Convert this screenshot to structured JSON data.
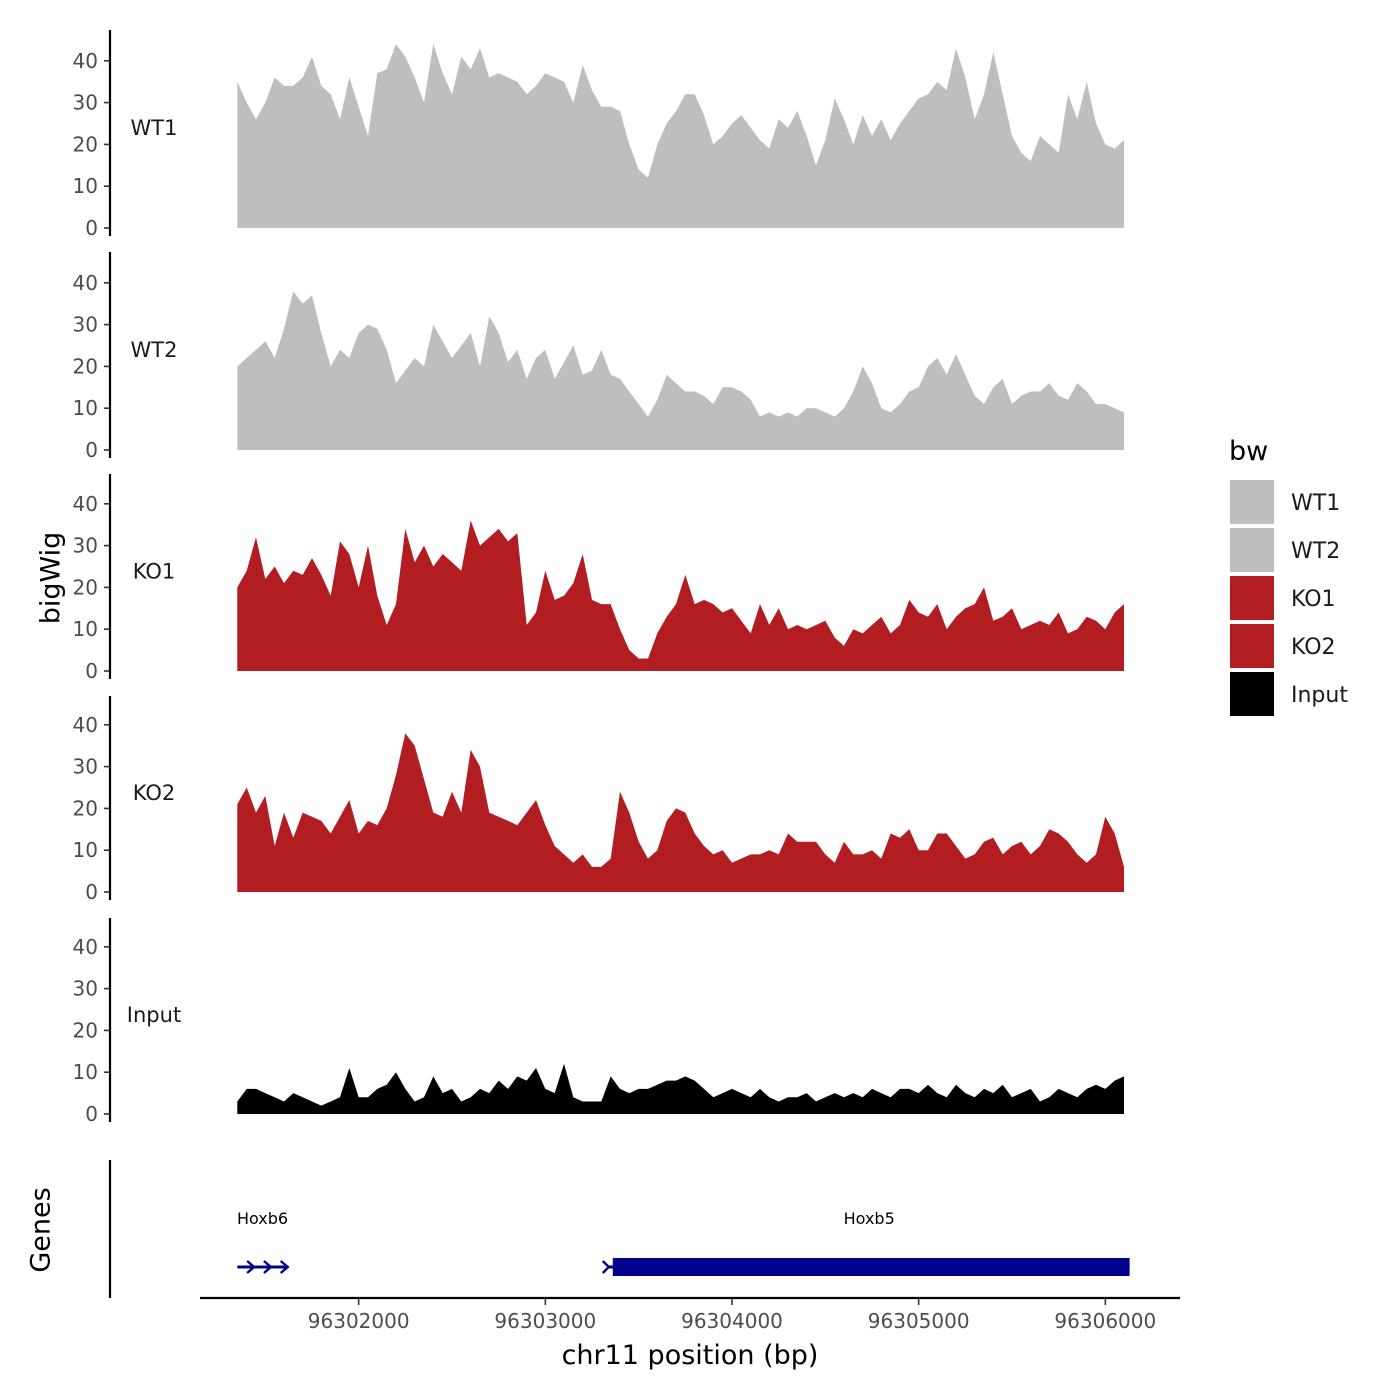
{
  "chart_data": {
    "type": "area",
    "y_axis_title": "bigWig",
    "x_axis_title": "chr11 position (bp)",
    "genes_axis_title": "Genes",
    "legend_title": "bw",
    "y_ticks": [
      "0",
      "10",
      "20",
      "30",
      "40"
    ],
    "ylim": [
      0,
      46
    ],
    "xlim": [
      96301150,
      96306400
    ],
    "x_ticks": [
      {
        "value": 96302000,
        "label": "96302000"
      },
      {
        "value": 96303000,
        "label": "96303000"
      },
      {
        "value": 96304000,
        "label": "96304000"
      },
      {
        "value": 96305000,
        "label": "96305000"
      },
      {
        "value": 96306000,
        "label": "96306000"
      }
    ],
    "series": [
      {
        "name": "WT1",
        "label": "WT1",
        "color": "#bebebe",
        "x": [
          96301350,
          96301400,
          96301450,
          96301500,
          96301550,
          96301600,
          96301650,
          96301700,
          96301750,
          96301800,
          96301850,
          96301900,
          96301950,
          96302000,
          96302050,
          96302100,
          96302150,
          96302200,
          96302250,
          96302300,
          96302350,
          96302400,
          96302450,
          96302500,
          96302550,
          96302600,
          96302650,
          96302700,
          96302750,
          96302800,
          96302850,
          96302900,
          96302950,
          96303000,
          96303050,
          96303100,
          96303150,
          96303200,
          96303250,
          96303300,
          96303350,
          96303400,
          96303450,
          96303500,
          96303550,
          96303600,
          96303650,
          96303700,
          96303750,
          96303800,
          96303850,
          96303900,
          96303950,
          96304000,
          96304050,
          96304100,
          96304150,
          96304200,
          96304250,
          96304300,
          96304350,
          96304400,
          96304450,
          96304500,
          96304550,
          96304600,
          96304650,
          96304700,
          96304750,
          96304800,
          96304850,
          96304900,
          96304950,
          96305000,
          96305050,
          96305100,
          96305150,
          96305200,
          96305250,
          96305300,
          96305350,
          96305400,
          96305450,
          96305500,
          96305550,
          96305600,
          96305650,
          96305700,
          96305750,
          96305800,
          96305850,
          96305900,
          96305950,
          96306000,
          96306050,
          96306100
        ],
        "values": [
          35,
          30,
          26,
          30,
          36,
          34,
          34,
          36,
          41,
          34,
          32,
          26,
          36,
          29,
          22,
          37,
          38,
          44,
          41,
          36,
          30,
          44,
          37,
          32,
          41,
          38,
          43,
          36,
          37,
          36,
          35,
          32,
          34,
          37,
          36,
          35,
          30,
          39,
          33,
          29,
          29,
          28,
          20,
          14,
          12,
          20,
          25,
          28,
          32,
          32,
          27,
          20,
          22,
          25,
          27,
          24,
          21,
          19,
          26,
          24,
          28,
          22,
          15,
          21,
          31,
          26,
          20,
          27,
          22,
          26,
          21,
          25,
          28,
          31,
          32,
          35,
          33,
          43,
          36,
          26,
          32,
          42,
          32,
          22,
          18,
          16,
          22,
          20,
          18,
          32,
          26,
          35,
          25,
          20,
          19,
          21
        ]
      },
      {
        "name": "WT2",
        "label": "WT2",
        "color": "#bebebe",
        "x": [
          96301350,
          96301400,
          96301450,
          96301500,
          96301550,
          96301600,
          96301650,
          96301700,
          96301750,
          96301800,
          96301850,
          96301900,
          96301950,
          96302000,
          96302050,
          96302100,
          96302150,
          96302200,
          96302250,
          96302300,
          96302350,
          96302400,
          96302450,
          96302500,
          96302550,
          96302600,
          96302650,
          96302700,
          96302750,
          96302800,
          96302850,
          96302900,
          96302950,
          96303000,
          96303050,
          96303100,
          96303150,
          96303200,
          96303250,
          96303300,
          96303350,
          96303400,
          96303450,
          96303500,
          96303550,
          96303600,
          96303650,
          96303700,
          96303750,
          96303800,
          96303850,
          96303900,
          96303950,
          96304000,
          96304050,
          96304100,
          96304150,
          96304200,
          96304250,
          96304300,
          96304350,
          96304400,
          96304450,
          96304500,
          96304550,
          96304600,
          96304650,
          96304700,
          96304750,
          96304800,
          96304850,
          96304900,
          96304950,
          96305000,
          96305050,
          96305100,
          96305150,
          96305200,
          96305250,
          96305300,
          96305350,
          96305400,
          96305450,
          96305500,
          96305550,
          96305600,
          96305650,
          96305700,
          96305750,
          96305800,
          96305850,
          96305900,
          96305950,
          96306000,
          96306050,
          96306100
        ],
        "values": [
          20,
          22,
          24,
          26,
          22,
          29,
          38,
          35,
          37,
          28,
          20,
          24,
          22,
          28,
          30,
          29,
          24,
          16,
          19,
          22,
          20,
          30,
          26,
          22,
          25,
          28,
          20,
          32,
          28,
          21,
          24,
          17,
          22,
          24,
          17,
          21,
          25,
          18,
          19,
          24,
          18,
          17,
          14,
          11,
          8,
          12,
          18,
          16,
          14,
          14,
          13,
          11,
          15,
          15,
          14,
          12,
          8,
          9,
          8,
          9,
          8,
          10,
          10,
          9,
          8,
          10,
          14,
          20,
          16,
          10,
          9,
          11,
          14,
          15,
          20,
          22,
          18,
          23,
          18,
          13,
          11,
          15,
          17,
          11,
          13,
          14,
          14,
          16,
          13,
          12,
          16,
          14,
          11,
          11,
          10,
          9
        ]
      },
      {
        "name": "KO1",
        "label": "KO1",
        "color": "#b21d21",
        "x": [
          96301350,
          96301400,
          96301450,
          96301500,
          96301550,
          96301600,
          96301650,
          96301700,
          96301750,
          96301800,
          96301850,
          96301900,
          96301950,
          96302000,
          96302050,
          96302100,
          96302150,
          96302200,
          96302250,
          96302300,
          96302350,
          96302400,
          96302450,
          96302500,
          96302550,
          96302600,
          96302650,
          96302700,
          96302750,
          96302800,
          96302850,
          96302900,
          96302950,
          96303000,
          96303050,
          96303100,
          96303150,
          96303200,
          96303250,
          96303300,
          96303350,
          96303400,
          96303450,
          96303500,
          96303550,
          96303600,
          96303650,
          96303700,
          96303750,
          96303800,
          96303850,
          96303900,
          96303950,
          96304000,
          96304050,
          96304100,
          96304150,
          96304200,
          96304250,
          96304300,
          96304350,
          96304400,
          96304450,
          96304500,
          96304550,
          96304600,
          96304650,
          96304700,
          96304750,
          96304800,
          96304850,
          96304900,
          96304950,
          96305000,
          96305050,
          96305100,
          96305150,
          96305200,
          96305250,
          96305300,
          96305350,
          96305400,
          96305450,
          96305500,
          96305550,
          96305600,
          96305650,
          96305700,
          96305750,
          96305800,
          96305850,
          96305900,
          96305950,
          96306000,
          96306050,
          96306100
        ],
        "values": [
          20,
          24,
          32,
          22,
          25,
          21,
          24,
          23,
          27,
          23,
          18,
          31,
          28,
          20,
          30,
          18,
          11,
          16,
          34,
          26,
          30,
          25,
          28,
          26,
          24,
          36,
          30,
          32,
          34,
          31,
          33,
          11,
          14,
          24,
          17,
          18,
          21,
          28,
          17,
          16,
          16,
          10,
          5,
          3,
          3,
          9,
          13,
          16,
          23,
          16,
          17,
          16,
          14,
          15,
          12,
          9,
          16,
          11,
          15,
          10,
          11,
          10,
          11,
          12,
          8,
          6,
          10,
          9,
          11,
          13,
          9,
          11,
          17,
          14,
          13,
          16,
          10,
          13,
          15,
          16,
          20,
          12,
          13,
          15,
          10,
          11,
          12,
          11,
          14,
          9,
          10,
          13,
          12,
          10,
          14,
          16
        ]
      },
      {
        "name": "KO2",
        "label": "KO2",
        "color": "#b21d21",
        "x": [
          96301350,
          96301400,
          96301450,
          96301500,
          96301550,
          96301600,
          96301650,
          96301700,
          96301750,
          96301800,
          96301850,
          96301900,
          96301950,
          96302000,
          96302050,
          96302100,
          96302150,
          96302200,
          96302250,
          96302300,
          96302350,
          96302400,
          96302450,
          96302500,
          96302550,
          96302600,
          96302650,
          96302700,
          96302750,
          96302800,
          96302850,
          96302900,
          96302950,
          96303000,
          96303050,
          96303100,
          96303150,
          96303200,
          96303250,
          96303300,
          96303350,
          96303400,
          96303450,
          96303500,
          96303550,
          96303600,
          96303650,
          96303700,
          96303750,
          96303800,
          96303850,
          96303900,
          96303950,
          96304000,
          96304050,
          96304100,
          96304150,
          96304200,
          96304250,
          96304300,
          96304350,
          96304400,
          96304450,
          96304500,
          96304550,
          96304600,
          96304650,
          96304700,
          96304750,
          96304800,
          96304850,
          96304900,
          96304950,
          96305000,
          96305050,
          96305100,
          96305150,
          96305200,
          96305250,
          96305300,
          96305350,
          96305400,
          96305450,
          96305500,
          96305550,
          96305600,
          96305650,
          96305700,
          96305750,
          96305800,
          96305850,
          96305900,
          96305950,
          96306000,
          96306050,
          96306100
        ],
        "values": [
          21,
          25,
          19,
          23,
          11,
          19,
          13,
          19,
          18,
          17,
          14,
          18,
          22,
          14,
          17,
          16,
          20,
          28,
          38,
          35,
          27,
          19,
          18,
          24,
          19,
          34,
          30,
          19,
          18,
          17,
          16,
          19,
          22,
          16,
          11,
          9,
          7,
          9,
          6,
          6,
          8,
          24,
          19,
          12,
          8,
          10,
          17,
          20,
          19,
          14,
          11,
          9,
          10,
          7,
          8,
          9,
          9,
          10,
          9,
          14,
          12,
          12,
          12,
          9,
          7,
          12,
          9,
          9,
          10,
          8,
          14,
          13,
          15,
          10,
          10,
          14,
          14,
          11,
          8,
          9,
          12,
          13,
          9,
          11,
          12,
          9,
          11,
          15,
          14,
          12,
          9,
          7,
          9,
          18,
          14,
          6
        ]
      },
      {
        "name": "Input",
        "label": "Input",
        "color": "#000000",
        "x": [
          96301350,
          96301400,
          96301450,
          96301500,
          96301550,
          96301600,
          96301650,
          96301700,
          96301750,
          96301800,
          96301850,
          96301900,
          96301950,
          96302000,
          96302050,
          96302100,
          96302150,
          96302200,
          96302250,
          96302300,
          96302350,
          96302400,
          96302450,
          96302500,
          96302550,
          96302600,
          96302650,
          96302700,
          96302750,
          96302800,
          96302850,
          96302900,
          96302950,
          96303000,
          96303050,
          96303100,
          96303150,
          96303200,
          96303250,
          96303300,
          96303350,
          96303400,
          96303450,
          96303500,
          96303550,
          96303600,
          96303650,
          96303700,
          96303750,
          96303800,
          96303850,
          96303900,
          96303950,
          96304000,
          96304050,
          96304100,
          96304150,
          96304200,
          96304250,
          96304300,
          96304350,
          96304400,
          96304450,
          96304500,
          96304550,
          96304600,
          96304650,
          96304700,
          96304750,
          96304800,
          96304850,
          96304900,
          96304950,
          96305000,
          96305050,
          96305100,
          96305150,
          96305200,
          96305250,
          96305300,
          96305350,
          96305400,
          96305450,
          96305500,
          96305550,
          96305600,
          96305650,
          96305700,
          96305750,
          96305800,
          96305850,
          96305900,
          96305950,
          96306000,
          96306050,
          96306100
        ],
        "values": [
          3,
          6,
          6,
          5,
          4,
          3,
          5,
          4,
          3,
          2,
          3,
          4,
          11,
          4,
          4,
          6,
          7,
          10,
          6,
          3,
          4,
          9,
          5,
          6,
          3,
          4,
          6,
          5,
          8,
          6,
          9,
          8,
          11,
          6,
          5,
          12,
          4,
          3,
          3,
          3,
          9,
          6,
          5,
          6,
          6,
          7,
          8,
          8,
          9,
          8,
          6,
          4,
          5,
          6,
          5,
          4,
          6,
          4,
          3,
          4,
          4,
          5,
          3,
          4,
          5,
          4,
          5,
          4,
          6,
          5,
          4,
          6,
          6,
          5,
          7,
          5,
          4,
          7,
          5,
          4,
          6,
          5,
          7,
          4,
          5,
          6,
          3,
          4,
          6,
          5,
          4,
          6,
          7,
          6,
          8,
          9
        ]
      }
    ],
    "genes": [
      {
        "name": "Hoxb6",
        "start": 96301350,
        "end": 96301620,
        "strand": "+",
        "feature": "arrows"
      },
      {
        "name": "Hoxb5",
        "start": 96303340,
        "end": 96306130,
        "strand": "+",
        "feature": "thick-block"
      }
    ]
  }
}
